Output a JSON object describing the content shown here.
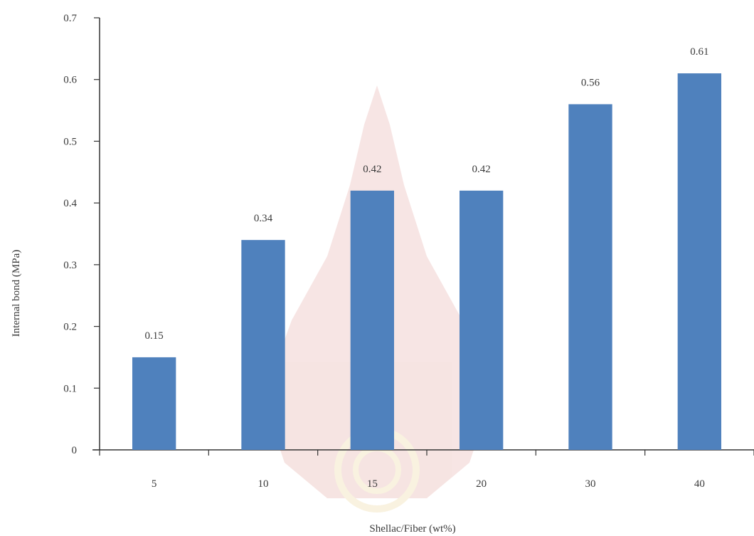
{
  "chart_data": {
    "type": "bar",
    "categories": [
      "5",
      "10",
      "15",
      "20",
      "30",
      "40"
    ],
    "values": [
      0.15,
      0.34,
      0.42,
      0.42,
      0.56,
      0.61
    ],
    "data_labels": [
      "0.15",
      "0.34",
      "0.42",
      "0.42",
      "0.56",
      "0.61"
    ],
    "title": "",
    "xlabel": "Shellac/Fiber (wt%)",
    "ylabel": "Internal bond (MPa)",
    "ylim": [
      0,
      0.7
    ],
    "yticks": [
      0,
      0.1,
      0.2,
      0.3,
      0.4,
      0.5,
      0.6,
      0.7
    ],
    "ytick_labels": [
      "0",
      "0.1",
      "0.2",
      "0.3",
      "0.4",
      "0.5",
      "0.6",
      "0.7"
    ],
    "grid": false,
    "legend": "none",
    "bar_color": "#4f81bd",
    "watermark_color": "#c0392b"
  }
}
